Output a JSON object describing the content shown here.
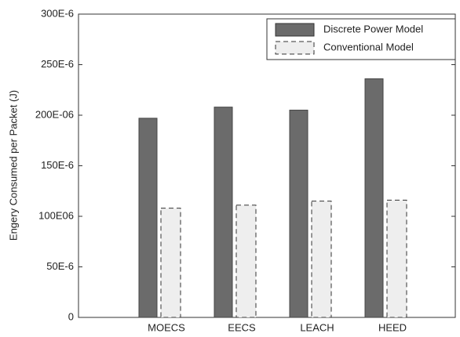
{
  "chart_data": {
    "type": "bar",
    "y_label": "Engery Consumed per Packet (J)",
    "categories": [
      "MOECS",
      "EECS",
      "LEACH",
      "HEED"
    ],
    "series": [
      {
        "name": "Discrete Power Model",
        "color": "#6b6b6b",
        "values": [
          0.000197,
          0.000208,
          0.000205,
          0.000236
        ]
      },
      {
        "name": "Conventional Model",
        "color": "#eeeeee",
        "values": [
          0.000108,
          0.000111,
          0.000115,
          0.000116
        ]
      }
    ],
    "ylim": [
      0,
      0.0003
    ],
    "yticks": [
      0,
      {
        "value": 5e-05,
        "label": "50E-6"
      },
      {
        "value": 0.0001,
        "label": "100E06"
      },
      {
        "value": 0.00015,
        "label": "150E-6"
      },
      {
        "value": 0.0002,
        "label": "200E-06"
      },
      {
        "value": 0.00025,
        "label": "250E-6"
      },
      {
        "value": 0.0003,
        "label": "300E-6"
      }
    ],
    "legend": "upper right"
  }
}
